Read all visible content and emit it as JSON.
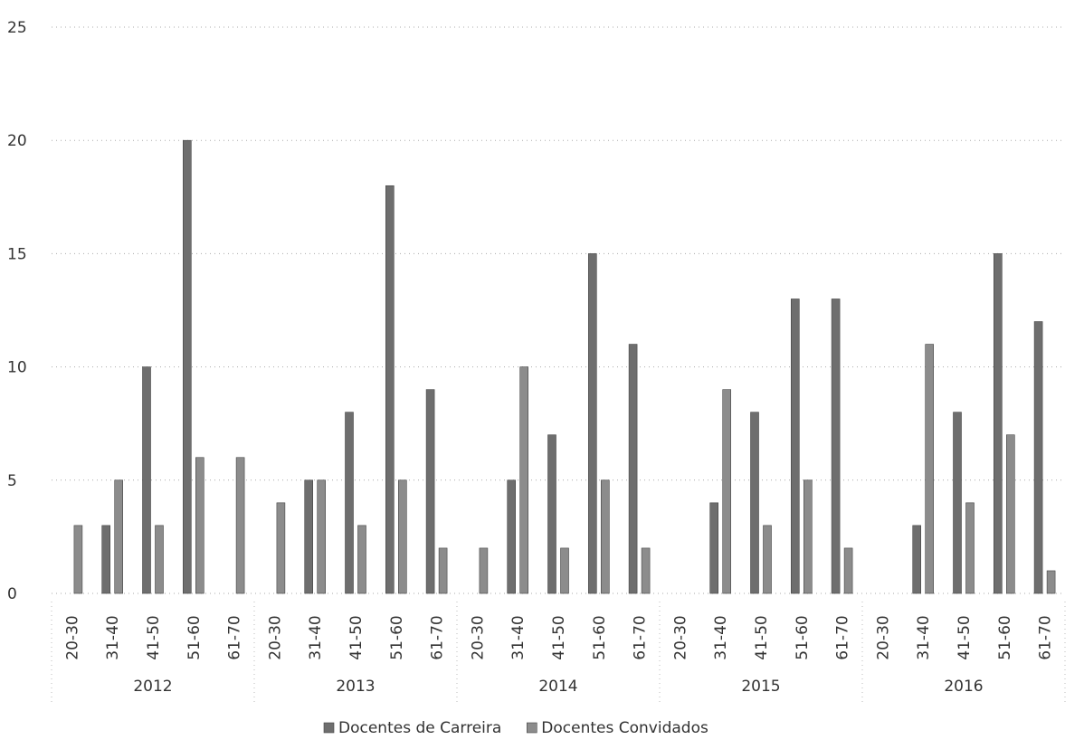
{
  "chart_data": {
    "type": "bar",
    "categories": [
      "20-30",
      "31-40",
      "41-50",
      "51-60",
      "61-70",
      "20-30",
      "31-40",
      "41-50",
      "51-60",
      "61-70",
      "20-30",
      "31-40",
      "41-50",
      "51-60",
      "61-70",
      "20-30",
      "31-40",
      "41-50",
      "51-60",
      "61-70",
      "20-30",
      "31-40",
      "41-50",
      "51-60",
      "61-70"
    ],
    "groups": [
      "2012",
      "2013",
      "2014",
      "2015",
      "2016"
    ],
    "series": [
      {
        "name": "Docentes de Carreira",
        "color": "#6e6e6e",
        "values": [
          0,
          3,
          10,
          20,
          0,
          0,
          5,
          8,
          18,
          9,
          0,
          5,
          7,
          15,
          11,
          0,
          4,
          8,
          13,
          13,
          0,
          3,
          8,
          15,
          12
        ]
      },
      {
        "name": "Docentes Convidados",
        "color": "#8c8c8c",
        "values": [
          3,
          5,
          3,
          6,
          6,
          4,
          5,
          3,
          5,
          2,
          2,
          10,
          2,
          5,
          2,
          0,
          9,
          3,
          5,
          2,
          0,
          11,
          4,
          7,
          1
        ]
      }
    ],
    "ylim": [
      0,
      25
    ],
    "yticks": [
      0,
      5,
      10,
      15,
      20,
      25
    ],
    "grid": true,
    "legend": "bottom"
  }
}
